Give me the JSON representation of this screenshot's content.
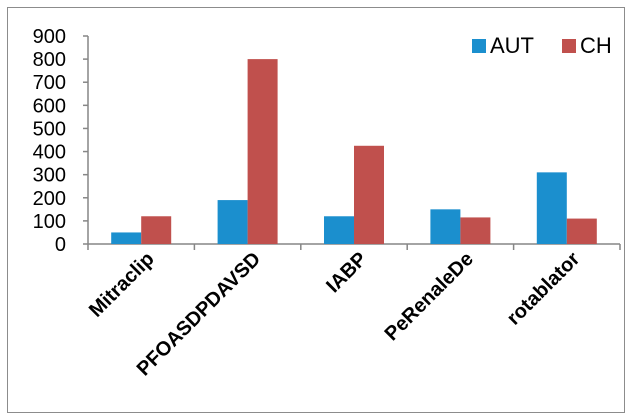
{
  "chart_data": {
    "type": "bar",
    "categories": [
      "Mitraclip",
      "PFOASDPDAVSD",
      "IABP",
      "PeRenaleDe",
      "rotablator"
    ],
    "series": [
      {
        "name": "AUT",
        "color": "#1b8fce",
        "values": [
          50,
          190,
          120,
          150,
          310
        ]
      },
      {
        "name": "CH",
        "color": "#c0504d",
        "values": [
          120,
          800,
          425,
          115,
          110
        ]
      }
    ],
    "ylim": [
      0,
      900
    ],
    "yticks": [
      0,
      100,
      200,
      300,
      400,
      500,
      600,
      700,
      800,
      900
    ],
    "grid": false,
    "legend": "top-right"
  }
}
